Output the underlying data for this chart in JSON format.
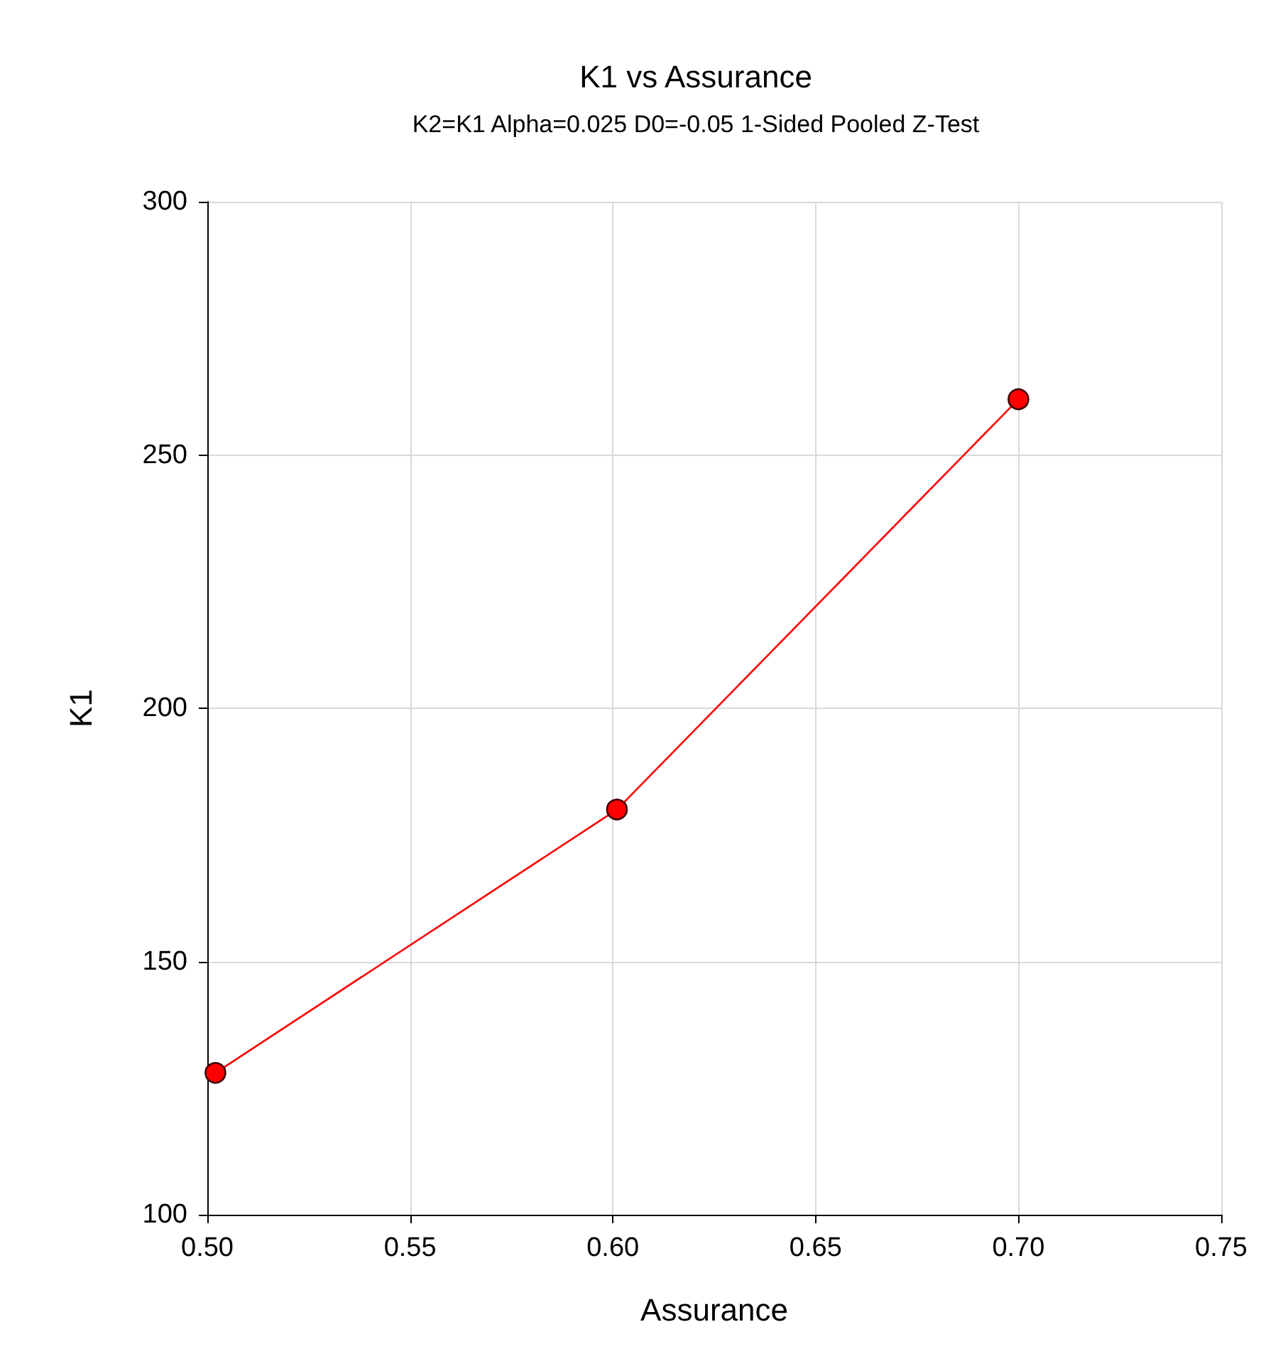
{
  "chart_data": {
    "type": "line",
    "title": "K1 vs Assurance",
    "subtitle": "K2=K1 Alpha=0.025 D0=-0.05 1-Sided Pooled Z-Test",
    "xlabel": "Assurance",
    "ylabel": "K1",
    "x": [
      0.502,
      0.601,
      0.7
    ],
    "series": [
      {
        "color": "#ff0000",
        "values": [
          128,
          180,
          261
        ]
      }
    ],
    "xlim": [
      0.5,
      0.75
    ],
    "xticks": [
      {
        "value": 0.5,
        "label": "0.50"
      },
      {
        "value": 0.55,
        "label": "0.55"
      },
      {
        "value": 0.6,
        "label": "0.60"
      },
      {
        "value": 0.65,
        "label": "0.65"
      },
      {
        "value": 0.7,
        "label": "0.70"
      },
      {
        "value": 0.75,
        "label": "0.75"
      }
    ],
    "ylim": [
      100,
      300
    ],
    "yticks": [
      100,
      150,
      200,
      250,
      300
    ],
    "grid": true,
    "marker": "circle",
    "line_style": "solid"
  }
}
